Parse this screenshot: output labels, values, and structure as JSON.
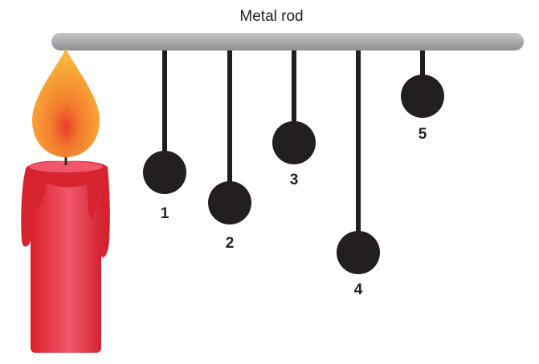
{
  "rod": {
    "label": "Metal rod",
    "color": "#a9abae"
  },
  "string_color": "#1e1d1f",
  "ball_color": "#231f20",
  "candle": {
    "wax_color": "#e8303c",
    "flame_color": "#f7a233"
  },
  "pendulums": [
    {
      "label": "1"
    },
    {
      "label": "2"
    },
    {
      "label": "3"
    },
    {
      "label": "4"
    },
    {
      "label": "5"
    }
  ]
}
